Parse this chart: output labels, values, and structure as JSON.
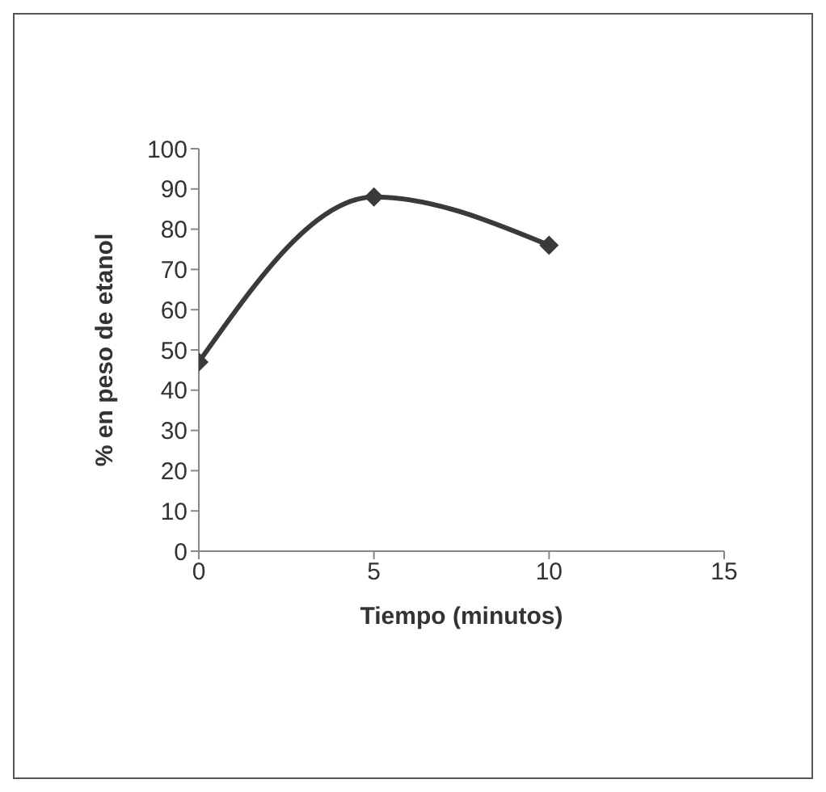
{
  "chart_data": {
    "type": "line",
    "xlabel": "Tiempo (minutos)",
    "ylabel": "% en peso de etanol",
    "x": [
      0,
      5,
      10
    ],
    "series": [
      {
        "color": "#3a3a3a",
        "values": [
          47,
          88,
          76
        ]
      }
    ],
    "xlim": [
      0,
      15
    ],
    "xticks": [
      0,
      5,
      10,
      15
    ],
    "ylim": [
      0,
      100
    ],
    "yticks": [
      0,
      10,
      20,
      30,
      40,
      50,
      60,
      70,
      80,
      90,
      100
    ],
    "grid": false,
    "legend": false,
    "marker": "diamond",
    "line_style": "solid"
  }
}
